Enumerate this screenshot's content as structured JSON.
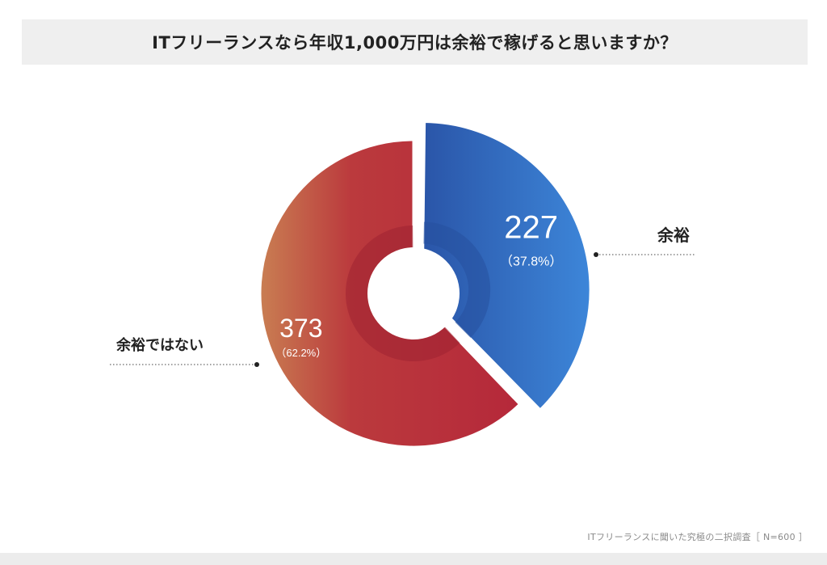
{
  "chart_data": {
    "type": "pie",
    "title": "ITフリーランスなら年収1,000万円は余裕で稼げると思いますか？",
    "categories": [
      "余裕",
      "余裕ではない"
    ],
    "values": [
      227,
      373
    ],
    "percent_labels": [
      "（37.8%）",
      "（62.2%）"
    ],
    "colors": [
      "#2f62b8",
      "#b5283a"
    ],
    "donut": true,
    "exploded": "余裕",
    "legend": "callouts-outside"
  },
  "footnote": "ITフリーランスに聞いた究極の二択調査［ N=600 ］"
}
